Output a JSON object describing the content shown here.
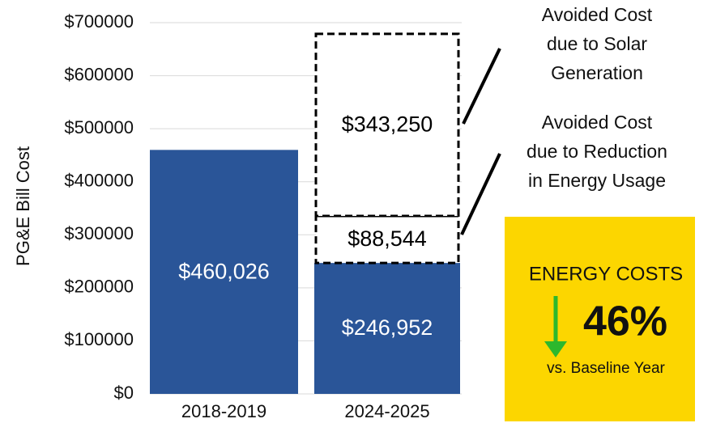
{
  "chart_data": {
    "type": "stacked_bar",
    "y_label": "PG&E Bill Cost",
    "categories": [
      "2018-2019",
      "2024-2025"
    ],
    "series": [
      {
        "color": "#2a5598",
        "border": "none",
        "values": [
          460026,
          246952
        ],
        "value_labels": [
          "$460,026",
          "$246,952"
        ]
      },
      {
        "color": "#ffffff",
        "border": "dashed",
        "values": [
          null,
          88544
        ],
        "value_labels": [
          null,
          "$88,544"
        ]
      },
      {
        "color": "#ffffff",
        "border": "dashed",
        "values": [
          null,
          343250
        ],
        "value_labels": [
          null,
          "$343,250"
        ]
      }
    ],
    "ylim": [
      0,
      700000
    ],
    "yticks": [
      {
        "value": 0,
        "label": "$0"
      },
      {
        "value": 100000,
        "label": "$100000"
      },
      {
        "value": 200000,
        "label": "$200000"
      },
      {
        "value": 300000,
        "label": "$300000"
      },
      {
        "value": 400000,
        "label": "$400000"
      },
      {
        "value": 500000,
        "label": "$500000"
      },
      {
        "value": 600000,
        "label": "$600000"
      },
      {
        "value": 700000,
        "label": "$700000"
      }
    ],
    "grid": true,
    "annotations": [
      {
        "lines": [
          "Avoided Cost",
          "due to Solar",
          "Generation"
        ]
      },
      {
        "lines": [
          "Avoided Cost",
          "due to Reduction",
          "in Energy Usage"
        ]
      }
    ],
    "callout": {
      "heading": "ENERGY COSTS",
      "change": "46%",
      "caption": "vs. Baseline Year",
      "color": "#fcd600"
    }
  }
}
